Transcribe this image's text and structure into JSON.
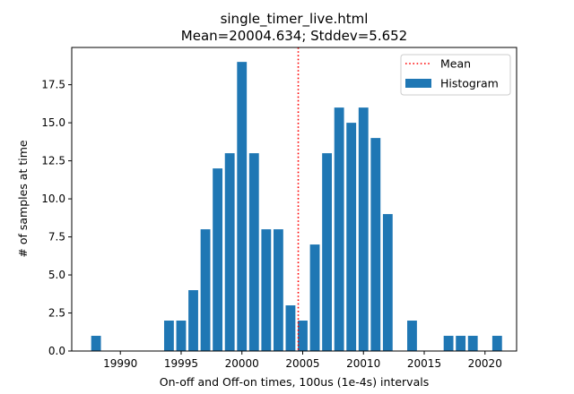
{
  "chart_data": {
    "type": "bar",
    "title": "single_timer_live.html",
    "subtitle": "Mean=20004.634; Stddev=5.652",
    "xlabel": "On-off and Off-on times, 100us (1e-4s) intervals",
    "ylabel": "# of samples at time",
    "xlim": [
      19986.0,
      20022.6
    ],
    "ylim": [
      0,
      19.95
    ],
    "xticks": [
      19990,
      19995,
      20000,
      20005,
      20010,
      20015,
      20020
    ],
    "xtick_labels": [
      "19990",
      "19995",
      "20000",
      "20005",
      "20010",
      "20015",
      "20020"
    ],
    "yticks": [
      0,
      2.5,
      5,
      7.5,
      10,
      12.5,
      15,
      17.5
    ],
    "ytick_labels": [
      "0.0",
      "2.5",
      "5.0",
      "7.5",
      "10.0",
      "12.5",
      "15.0",
      "17.5"
    ],
    "bar_color": "#1f77b4",
    "mean_color": "#ff0000",
    "mean": 20004.634,
    "series": [
      {
        "name": "Histogram",
        "x": [
          19988,
          19994,
          19995,
          19996,
          19997,
          19998,
          19999,
          20000,
          20001,
          20002,
          20003,
          20004,
          20005,
          20006,
          20007,
          20008,
          20009,
          20010,
          20011,
          20012,
          20014,
          20017,
          20018,
          20019,
          20021
        ],
        "values": [
          1,
          2,
          2,
          4,
          8,
          12,
          13,
          19,
          13,
          8,
          8,
          3,
          2,
          7,
          13,
          16,
          15,
          16,
          14,
          9,
          2,
          1,
          1,
          1,
          1
        ]
      }
    ],
    "legend": {
      "position": "upper right",
      "entries": [
        "Mean",
        "Histogram"
      ]
    }
  }
}
